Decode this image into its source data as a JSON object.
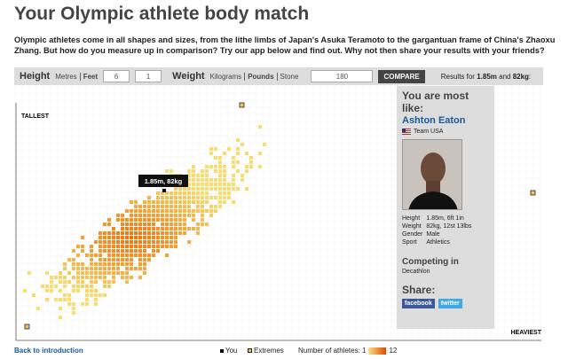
{
  "header": {
    "title": "Your Olympic athlete body match",
    "intro": "Olympic athletes come in all shapes and sizes, from the lithe limbs of Japan's Asuka Teramoto to the gargantuan frame of China's Zhaoxu Zhang. But how do you measure up in comparison? Try our app below and find out. Why not then share your results with your friends?"
  },
  "controls": {
    "height_label": "Height",
    "height_units": [
      "Metres",
      "Feet"
    ],
    "feet": "6",
    "inches": "1",
    "weight_label": "Weight",
    "weight_units": [
      "Kilograms",
      "Pounds",
      "Stone"
    ],
    "weight": "180",
    "button": "COMPARE",
    "results": [
      "Results for ",
      "1.85m",
      " and ",
      "82kg",
      ":"
    ]
  },
  "chart": {
    "y_label": "TALLEST",
    "x_label": "HEAVIEST",
    "tooltip": "1.85m, 82kg"
  },
  "panel": {
    "heading": "You are most like:",
    "name": "Ashton Eaton",
    "team": "Team USA",
    "details": [
      [
        "Height",
        "1.85m, 6ft 1in"
      ],
      [
        "Weight",
        "82kg, 12st 13lbs"
      ],
      [
        "Gender",
        "Male"
      ],
      [
        "Sport",
        "Athletics"
      ]
    ],
    "competing_heading": "Competing in",
    "event": "Decathlon",
    "share_heading": "Share:",
    "facebook": "facebook",
    "twitter": "twitter"
  },
  "footer": {
    "back": "Back to introduction",
    "you": "You",
    "extremes": "Extremes",
    "count_label": "Number of athletes: 1",
    "count_max": "12"
  }
}
